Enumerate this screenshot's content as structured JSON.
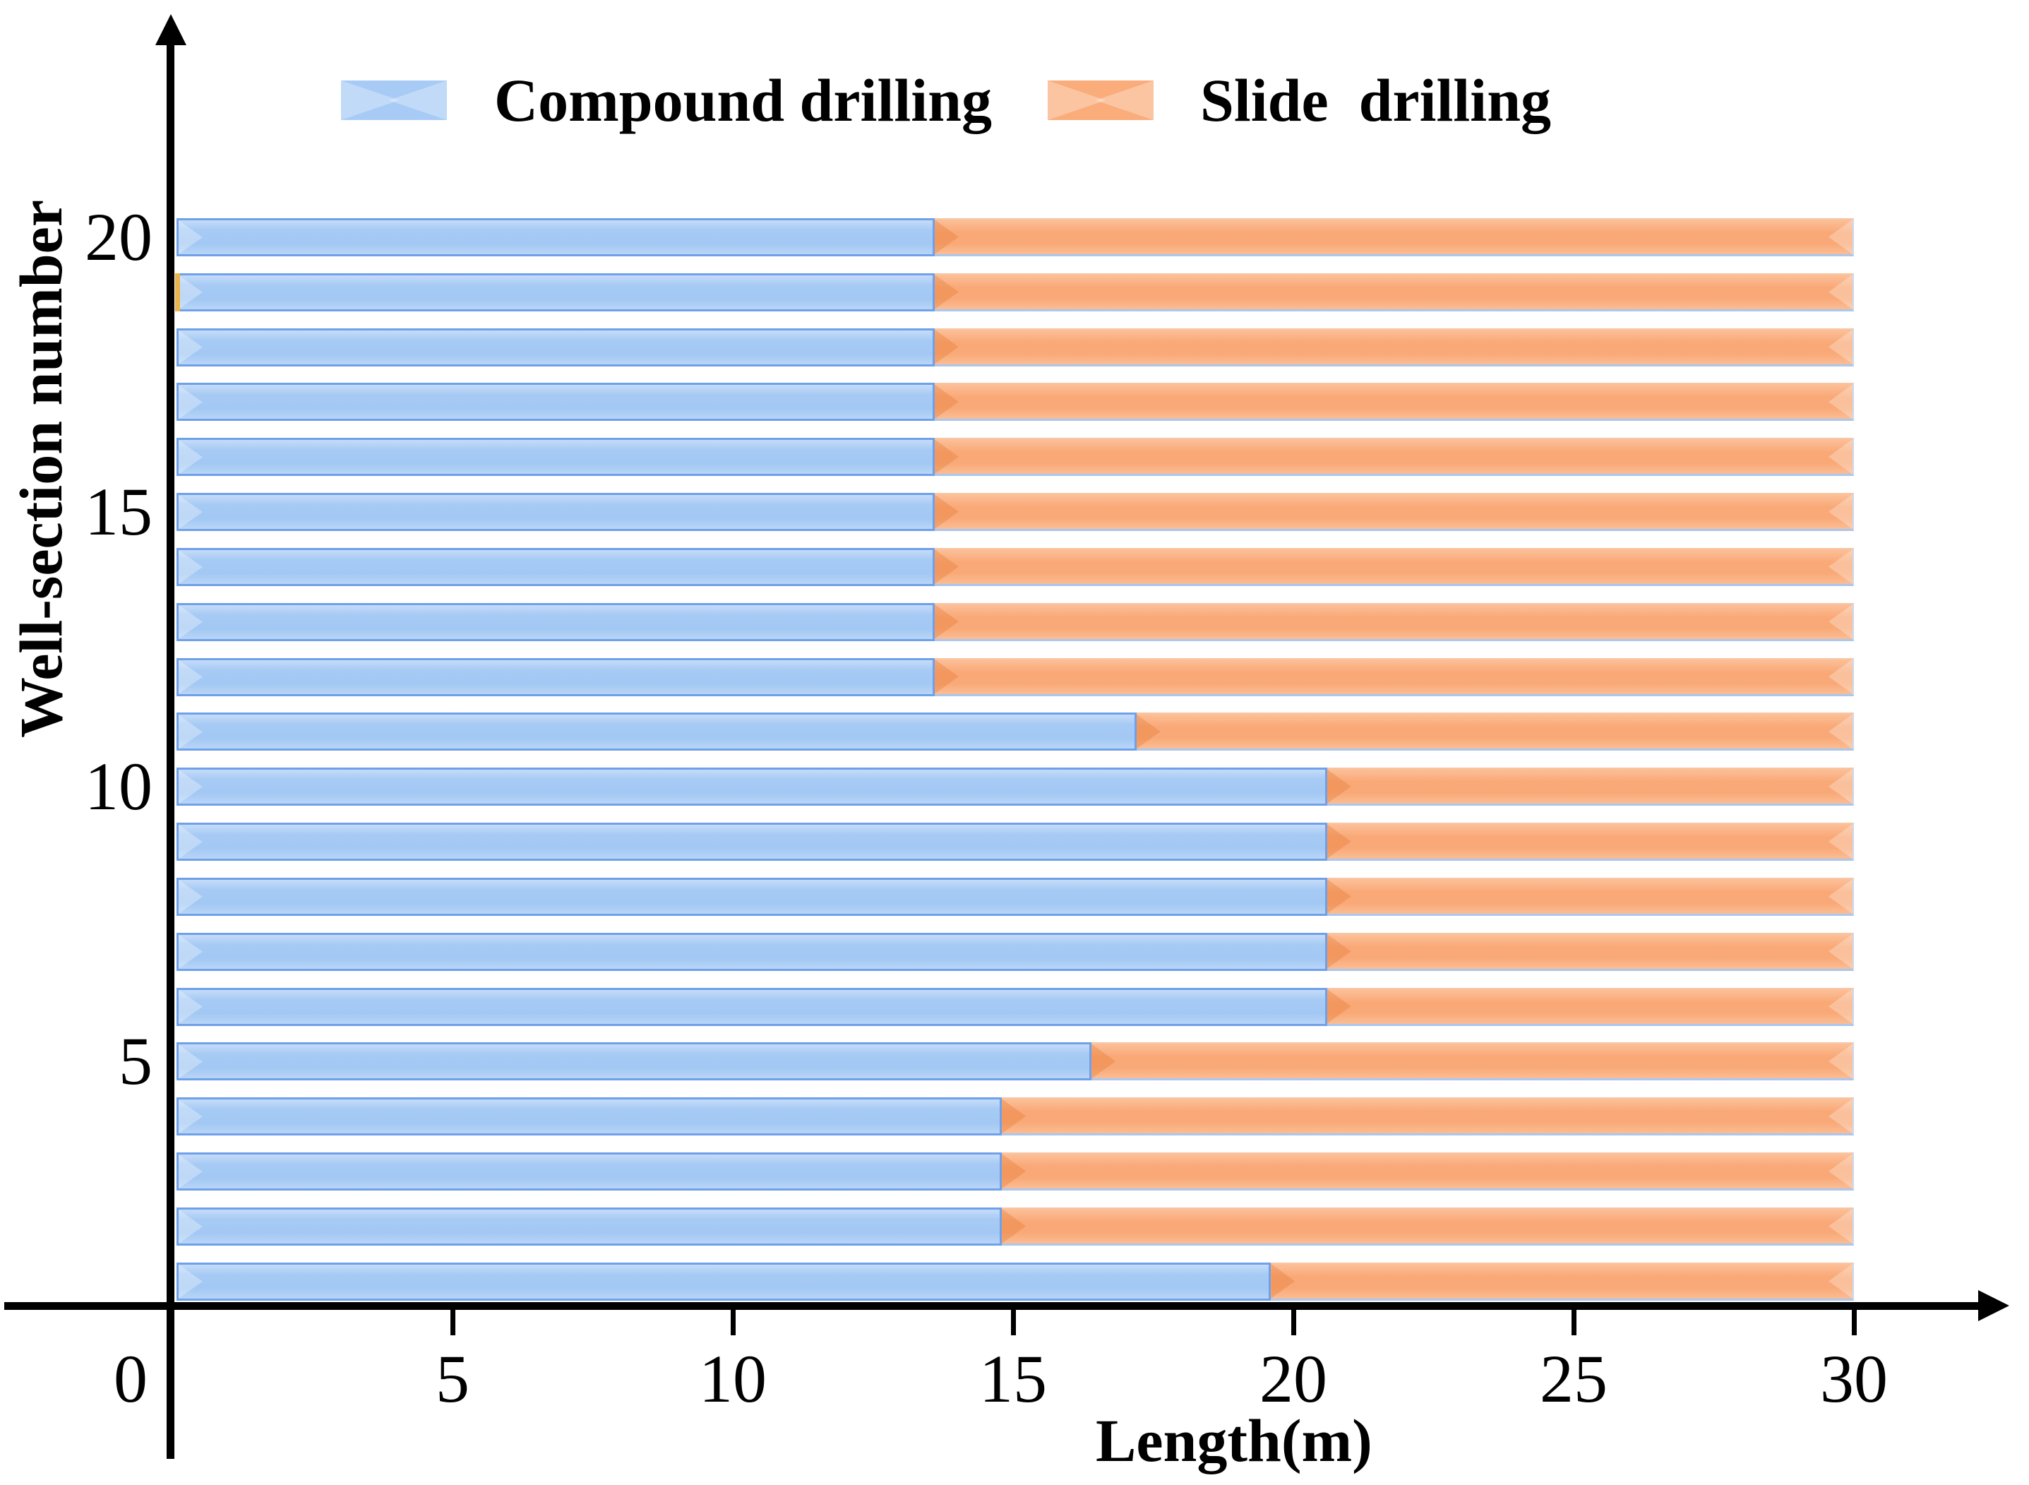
{
  "page": {
    "background": "#ffffff"
  },
  "legend": {
    "items": [
      {
        "id": "compound",
        "label": "Compound drilling",
        "color": "#A7CBF5"
      },
      {
        "id": "slide",
        "label": "Slide  drilling",
        "color": "#FAAC7A"
      }
    ]
  },
  "axes": {
    "x_label": "Length(m)",
    "y_label": "Well-section number",
    "x_ticks": [
      {
        "value": 0,
        "label": "0"
      },
      {
        "value": 5,
        "label": "5"
      },
      {
        "value": 10,
        "label": "10"
      },
      {
        "value": 15,
        "label": "15"
      },
      {
        "value": 20,
        "label": "20"
      },
      {
        "value": 25,
        "label": "25"
      },
      {
        "value": 30,
        "label": "30"
      }
    ],
    "y_ticks": [
      {
        "row": 20,
        "label": "20"
      },
      {
        "row": 15,
        "label": "15"
      },
      {
        "row": 10,
        "label": "10"
      },
      {
        "row": 5,
        "label": "5"
      }
    ]
  },
  "chart_data": {
    "type": "bar",
    "orientation": "horizontal",
    "stacked": true,
    "title": "",
    "xlabel": "Length(m)",
    "ylabel": "Well-section number",
    "xlim": [
      0,
      30
    ],
    "x_tick_step": 5,
    "grid": false,
    "legend_position": "top",
    "categories": [
      1,
      2,
      3,
      4,
      5,
      6,
      7,
      8,
      9,
      10,
      11,
      12,
      13,
      14,
      15,
      16,
      17,
      18,
      19,
      20
    ],
    "series": [
      {
        "name": "Compound drilling",
        "color": "#A7CBF5",
        "border_color": "#6FA0EA",
        "values": [
          19.6,
          14.8,
          14.8,
          14.8,
          16.4,
          20.6,
          20.6,
          20.6,
          20.6,
          20.6,
          17.2,
          13.6,
          13.6,
          13.6,
          13.6,
          13.6,
          13.6,
          13.6,
          13.6,
          13.6
        ]
      },
      {
        "name": "Slide drilling",
        "color": "#FAAC7A",
        "border_color": "#A9C7EF",
        "values": [
          10.4,
          15.2,
          15.2,
          15.2,
          13.6,
          9.4,
          9.4,
          9.4,
          9.4,
          9.4,
          12.8,
          16.4,
          16.4,
          16.4,
          16.4,
          16.4,
          16.4,
          16.4,
          16.4,
          16.4
        ]
      }
    ],
    "total_per_category": 30,
    "artifacts": [
      {
        "category": 19,
        "type": "left-edge-sliver",
        "color": "#E9B44C"
      }
    ]
  }
}
